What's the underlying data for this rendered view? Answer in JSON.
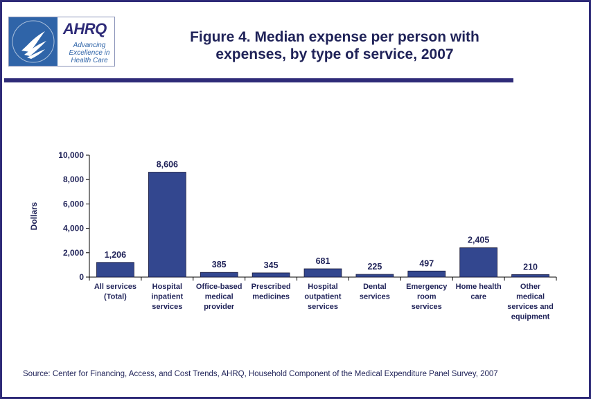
{
  "header": {
    "logo": {
      "brand": "AHRQ",
      "tagline": "Advancing Excellence in Health Care"
    },
    "title_line1": "Figure 4. Median expense per person with",
    "title_line2": "expenses, by type of service, 2007"
  },
  "source": "Source: Center for Financing, Access, and Cost Trends, AHRQ, Household Component of the Medical Expenditure Panel Survey, 2007",
  "colors": {
    "bar": "#33478f",
    "frame": "#2e2b78",
    "text": "#1f2258"
  },
  "chart_data": {
    "type": "bar",
    "title": "Figure 4. Median expense per person with expenses, by type of service, 2007",
    "xlabel": "",
    "ylabel": "Dollars",
    "ylim": [
      0,
      10000
    ],
    "yticks": [
      "0",
      "2,000",
      "4,000",
      "6,000",
      "8,000",
      "10,000"
    ],
    "grid": false,
    "legend": "none",
    "categories": [
      [
        "All services",
        "(Total)"
      ],
      [
        "Hospital",
        "inpatient",
        "services"
      ],
      [
        "Office-based",
        "medical",
        "provider"
      ],
      [
        "Prescribed",
        "medicines"
      ],
      [
        "Hospital",
        "outpatient",
        "services"
      ],
      [
        "Dental",
        "services"
      ],
      [
        "Emergency",
        "room",
        "services"
      ],
      [
        "Home health",
        "care"
      ],
      [
        "Other",
        "medical",
        "services and",
        "equipment"
      ]
    ],
    "values": [
      1206,
      8606,
      385,
      345,
      681,
      225,
      497,
      2405,
      210
    ],
    "value_labels": [
      "1,206",
      "8,606",
      "385",
      "345",
      "681",
      "225",
      "497",
      "2,405",
      "210"
    ]
  }
}
